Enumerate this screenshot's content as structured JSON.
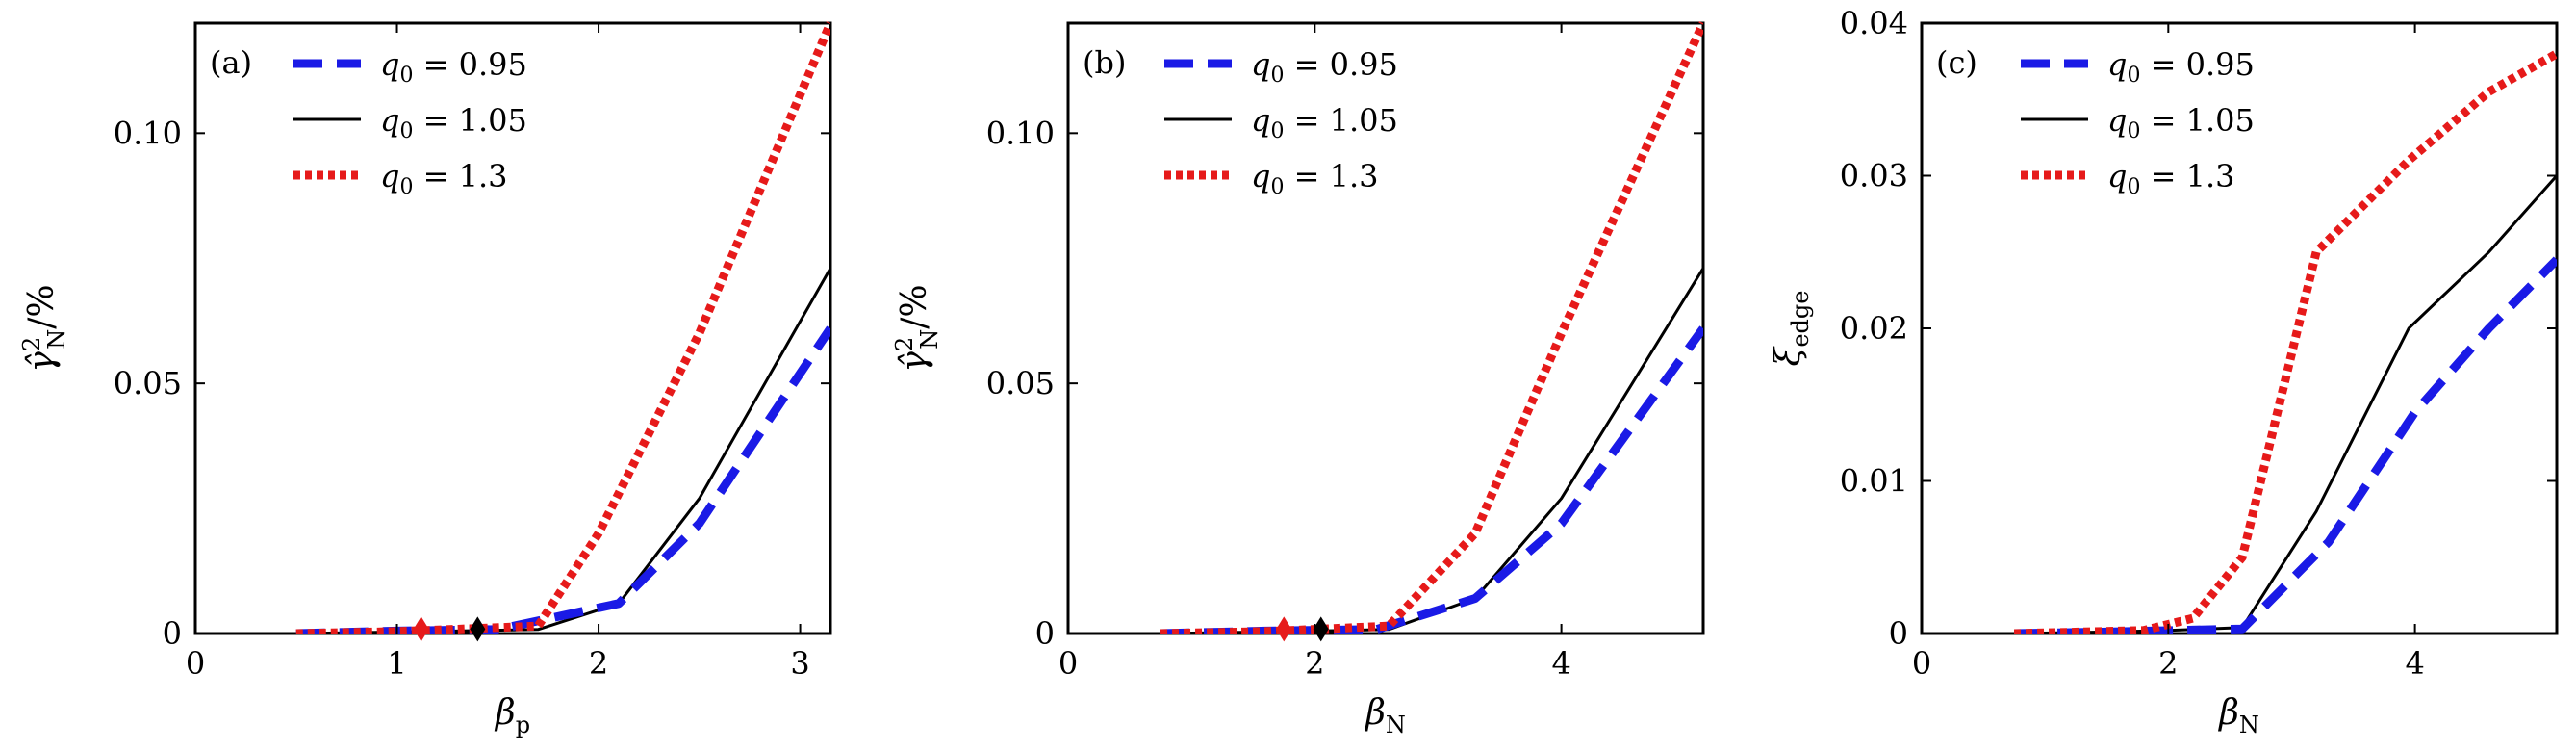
{
  "chart_data": [
    {
      "type": "line",
      "panel_label": "(a)",
      "xlabel": "βp",
      "ylabel": "γ̂²N/%",
      "xlim": [
        0,
        3.15
      ],
      "ylim": [
        0,
        0.122
      ],
      "x_ticks": [
        0,
        1,
        2,
        3
      ],
      "x_tick_labels": [
        "0",
        "1",
        "2",
        "3"
      ],
      "y_ticks": [
        0,
        0.05,
        0.1
      ],
      "y_tick_labels": [
        "0",
        "0.05",
        "0.10"
      ],
      "grid": false,
      "legend_position": "top-left",
      "series": [
        {
          "name": "q0 = 0.95",
          "color": "#1a1ae6",
          "style": "dashed",
          "x": [
            0.5,
            1.0,
            1.5,
            2.1,
            2.5,
            3.15
          ],
          "y": [
            0.0,
            0.0005,
            0.0008,
            0.006,
            0.022,
            0.061
          ]
        },
        {
          "name": "q0 = 1.05",
          "color": "#000000",
          "style": "solid",
          "x": [
            0.5,
            1.0,
            1.7,
            2.1,
            2.5,
            3.15
          ],
          "y": [
            0.0,
            0.0003,
            0.0008,
            0.006,
            0.027,
            0.073
          ]
        },
        {
          "name": "q0 = 1.3",
          "color": "#e61a1a",
          "style": "dotted",
          "x": [
            0.5,
            1.0,
            1.7,
            2.0,
            2.5,
            3.15
          ],
          "y": [
            0.0,
            0.0004,
            0.0015,
            0.02,
            0.06,
            0.122
          ]
        }
      ],
      "markers": [
        {
          "x": 1.12,
          "y": 0.0005,
          "color": "#e61a1a"
        },
        {
          "x": 1.4,
          "y": 0.0005,
          "color": "#000000"
        }
      ]
    },
    {
      "type": "line",
      "panel_label": "(b)",
      "xlabel": "βN",
      "ylabel": "γ̂²N/%",
      "xlim": [
        0,
        5.15
      ],
      "ylim": [
        0,
        0.122
      ],
      "x_ticks": [
        0,
        2,
        4
      ],
      "x_tick_labels": [
        "0",
        "2",
        "4"
      ],
      "y_ticks": [
        0,
        0.05,
        0.1
      ],
      "y_tick_labels": [
        "0",
        "0.05",
        "0.10"
      ],
      "grid": false,
      "legend_position": "top-left",
      "series": [
        {
          "name": "q0 = 0.95",
          "color": "#1a1ae6",
          "style": "dashed",
          "x": [
            0.75,
            1.6,
            2.5,
            3.3,
            4.0,
            5.15
          ],
          "y": [
            0.0,
            0.0005,
            0.0008,
            0.007,
            0.022,
            0.061
          ]
        },
        {
          "name": "q0 = 1.05",
          "color": "#000000",
          "style": "solid",
          "x": [
            0.75,
            1.6,
            2.6,
            3.3,
            4.0,
            5.15
          ],
          "y": [
            0.0,
            0.0003,
            0.0008,
            0.007,
            0.027,
            0.073
          ]
        },
        {
          "name": "q0 = 1.3",
          "color": "#e61a1a",
          "style": "dotted",
          "x": [
            0.75,
            1.6,
            2.6,
            3.3,
            4.0,
            5.15
          ],
          "y": [
            0.0,
            0.0004,
            0.0015,
            0.02,
            0.06,
            0.122
          ]
        }
      ],
      "markers": [
        {
          "x": 1.75,
          "y": 0.0005,
          "color": "#e61a1a"
        },
        {
          "x": 2.05,
          "y": 0.0005,
          "color": "#000000"
        }
      ]
    },
    {
      "type": "line",
      "panel_label": "(c)",
      "xlabel": "βN",
      "ylabel": "ξedge",
      "xlim": [
        0,
        5.15
      ],
      "ylim": [
        0,
        0.04
      ],
      "x_ticks": [
        0,
        2,
        4
      ],
      "x_tick_labels": [
        "0",
        "2",
        "4"
      ],
      "y_ticks": [
        0,
        0.01,
        0.02,
        0.03,
        0.04
      ],
      "y_tick_labels": [
        "0",
        "0.01",
        "0.02",
        "0.03",
        "0.04"
      ],
      "grid": false,
      "legend_position": "top-left",
      "series": [
        {
          "name": "q0 = 0.95",
          "color": "#1a1ae6",
          "style": "dashed",
          "x": [
            0.75,
            1.5,
            2.6,
            3.3,
            4.0,
            4.6,
            5.15
          ],
          "y": [
            0.0,
            0.0001,
            0.0003,
            0.006,
            0.0145,
            0.02,
            0.0245
          ]
        },
        {
          "name": "q0 = 1.05",
          "color": "#000000",
          "style": "solid",
          "x": [
            0.75,
            1.5,
            2.0,
            2.6,
            3.2,
            3.95,
            4.6,
            5.15
          ],
          "y": [
            0.0,
            0.0001,
            0.0002,
            0.0004,
            0.008,
            0.02,
            0.025,
            0.03
          ]
        },
        {
          "name": "q0 = 1.3",
          "color": "#e61a1a",
          "style": "dotted",
          "x": [
            0.75,
            1.8,
            2.2,
            2.6,
            3.2,
            3.95,
            4.6,
            5.15
          ],
          "y": [
            0.0,
            0.0002,
            0.001,
            0.005,
            0.025,
            0.031,
            0.0355,
            0.038
          ]
        }
      ],
      "markers": []
    }
  ],
  "legend_labels": {
    "q095": {
      "var": "q",
      "sub": "0",
      "rest": " = 0.95"
    },
    "q105": {
      "var": "q",
      "sub": "0",
      "rest": " = 1.05"
    },
    "q13": {
      "var": "q",
      "sub": "0",
      "rest": " = 1.3"
    }
  }
}
